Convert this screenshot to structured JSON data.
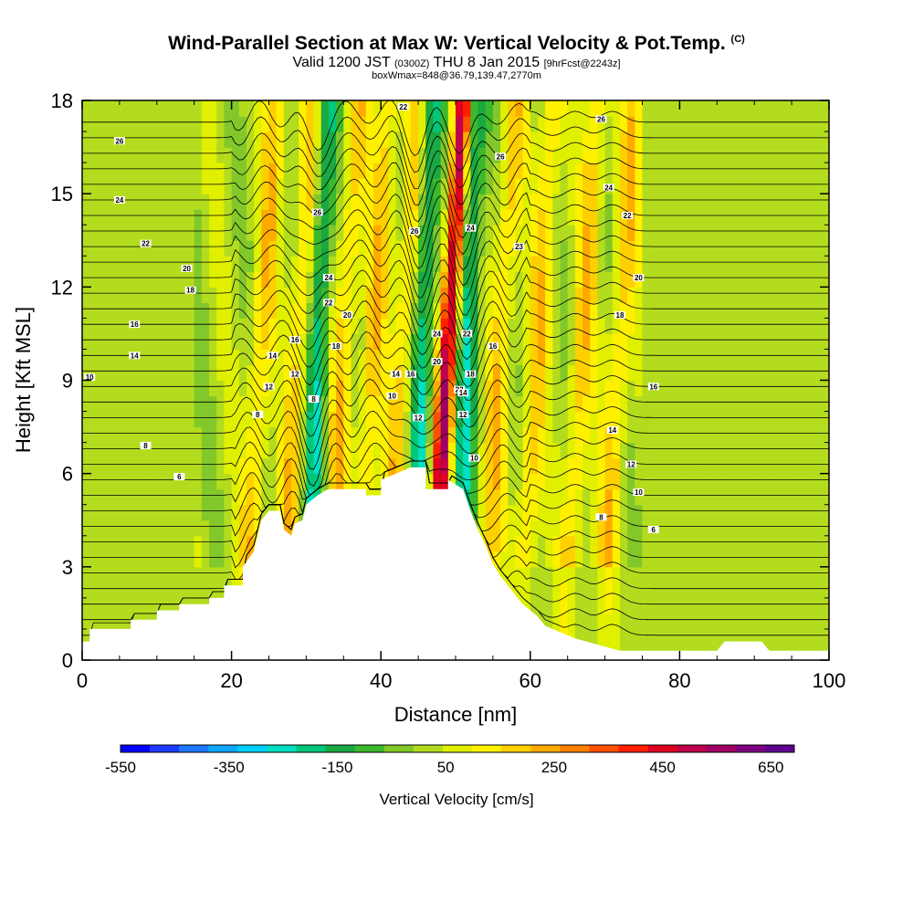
{
  "chart_data": {
    "type": "heatmap",
    "title": "Wind-Parallel Section at Max W: Vertical Velocity & Pot.Temp.",
    "title_mark": "(C)",
    "subtitle_main": "Valid 1200 JST",
    "subtitle_utc": "(0300Z)",
    "subtitle_date": "THU 8 Jan 2015",
    "subtitle_fcst": "[9hrFcst@2243z]",
    "subtitle2": "boxWmax=848@36.79,139.47,2770m",
    "xlabel": "Distance [nm]",
    "ylabel": "Height [Kft MSL]",
    "xlim": [
      0,
      100
    ],
    "ylim": [
      0,
      18
    ],
    "x_ticks": [
      "0",
      "20",
      "40",
      "60",
      "80",
      "100"
    ],
    "y_ticks": [
      "0",
      "3",
      "6",
      "9",
      "12",
      "15",
      "18"
    ],
    "colorbar": {
      "label": "Vertical Velocity [cm/s]",
      "tick_labels": [
        "-550",
        "-350",
        "-150",
        "50",
        "250",
        "450",
        "650"
      ],
      "colors": [
        "#0000ff",
        "#1e3cff",
        "#1e78ff",
        "#10a8ff",
        "#00d0ff",
        "#00e0c0",
        "#00c77a",
        "#1aa842",
        "#3cb82c",
        "#82c82a",
        "#b4dc1e",
        "#e0f000",
        "#fff000",
        "#ffd000",
        "#ffaa00",
        "#ff8000",
        "#ff5000",
        "#ff2000",
        "#e00020",
        "#c0004a",
        "#a00066",
        "#800080",
        "#600090"
      ]
    },
    "updraft_columns_nm": [
      23,
      28,
      34,
      38,
      42,
      48,
      55,
      60,
      66,
      71
    ],
    "downdraft_columns_nm": [
      31,
      45,
      51
    ],
    "max_updraft_column_nm": 48,
    "terrain_peak_nm": 46,
    "terrain_peak_kft": 6.2,
    "theta_contour_labels": [
      {
        "t": "26",
        "x": 5,
        "y": 16.7
      },
      {
        "t": "24",
        "x": 5,
        "y": 14.8
      },
      {
        "t": "22",
        "x": 8.5,
        "y": 13.4
      },
      {
        "t": "20",
        "x": 14,
        "y": 12.6
      },
      {
        "t": "18",
        "x": 14.5,
        "y": 11.9
      },
      {
        "t": "16",
        "x": 7,
        "y": 10.8
      },
      {
        "t": "14",
        "x": 7,
        "y": 9.8
      },
      {
        "t": "10",
        "x": 1,
        "y": 9.1
      },
      {
        "t": "8",
        "x": 8.5,
        "y": 6.9
      },
      {
        "t": "6",
        "x": 13,
        "y": 5.9
      },
      {
        "t": "22",
        "x": 43,
        "y": 17.8
      },
      {
        "t": "26",
        "x": 31.5,
        "y": 14.4
      },
      {
        "t": "24",
        "x": 33,
        "y": 12.3
      },
      {
        "t": "22",
        "x": 33,
        "y": 11.5
      },
      {
        "t": "20",
        "x": 35.5,
        "y": 11.1
      },
      {
        "t": "18",
        "x": 34,
        "y": 10.1
      },
      {
        "t": "16",
        "x": 28.5,
        "y": 10.3
      },
      {
        "t": "14",
        "x": 25.5,
        "y": 9.8
      },
      {
        "t": "12",
        "x": 28.5,
        "y": 9.2
      },
      {
        "t": "12",
        "x": 25,
        "y": 8.8
      },
      {
        "t": "8",
        "x": 31,
        "y": 8.4
      },
      {
        "t": "8",
        "x": 23.5,
        "y": 7.9
      },
      {
        "t": "26",
        "x": 44.5,
        "y": 13.8
      },
      {
        "t": "24",
        "x": 47.5,
        "y": 10.5
      },
      {
        "t": "24",
        "x": 52,
        "y": 13.9
      },
      {
        "t": "22",
        "x": 51.5,
        "y": 10.5
      },
      {
        "t": "22",
        "x": 50.5,
        "y": 8.7
      },
      {
        "t": "20",
        "x": 47.5,
        "y": 9.6
      },
      {
        "t": "18",
        "x": 52,
        "y": 9.2
      },
      {
        "t": "16",
        "x": 44,
        "y": 9.2
      },
      {
        "t": "14",
        "x": 42,
        "y": 9.2
      },
      {
        "t": "14",
        "x": 51,
        "y": 8.6
      },
      {
        "t": "12",
        "x": 45,
        "y": 7.8
      },
      {
        "t": "10",
        "x": 41.5,
        "y": 8.5
      },
      {
        "t": "10",
        "x": 52.5,
        "y": 6.5
      },
      {
        "t": "12",
        "x": 51,
        "y": 7.9
      },
      {
        "t": "26",
        "x": 56,
        "y": 16.2
      },
      {
        "t": "26",
        "x": 69.5,
        "y": 17.4
      },
      {
        "t": "24",
        "x": 70.5,
        "y": 15.2
      },
      {
        "t": "22",
        "x": 73,
        "y": 14.3
      },
      {
        "t": "23",
        "x": 58.5,
        "y": 13.3
      },
      {
        "t": "20",
        "x": 74.5,
        "y": 12.3
      },
      {
        "t": "18",
        "x": 72,
        "y": 11.1
      },
      {
        "t": "16",
        "x": 55,
        "y": 10.1
      },
      {
        "t": "16",
        "x": 76.5,
        "y": 8.8
      },
      {
        "t": "14",
        "x": 71,
        "y": 7.4
      },
      {
        "t": "12",
        "x": 73.5,
        "y": 6.3
      },
      {
        "t": "10",
        "x": 74.5,
        "y": 5.4
      },
      {
        "t": "8",
        "x": 69.5,
        "y": 4.6
      },
      {
        "t": "6",
        "x": 76.5,
        "y": 4.2
      }
    ]
  }
}
